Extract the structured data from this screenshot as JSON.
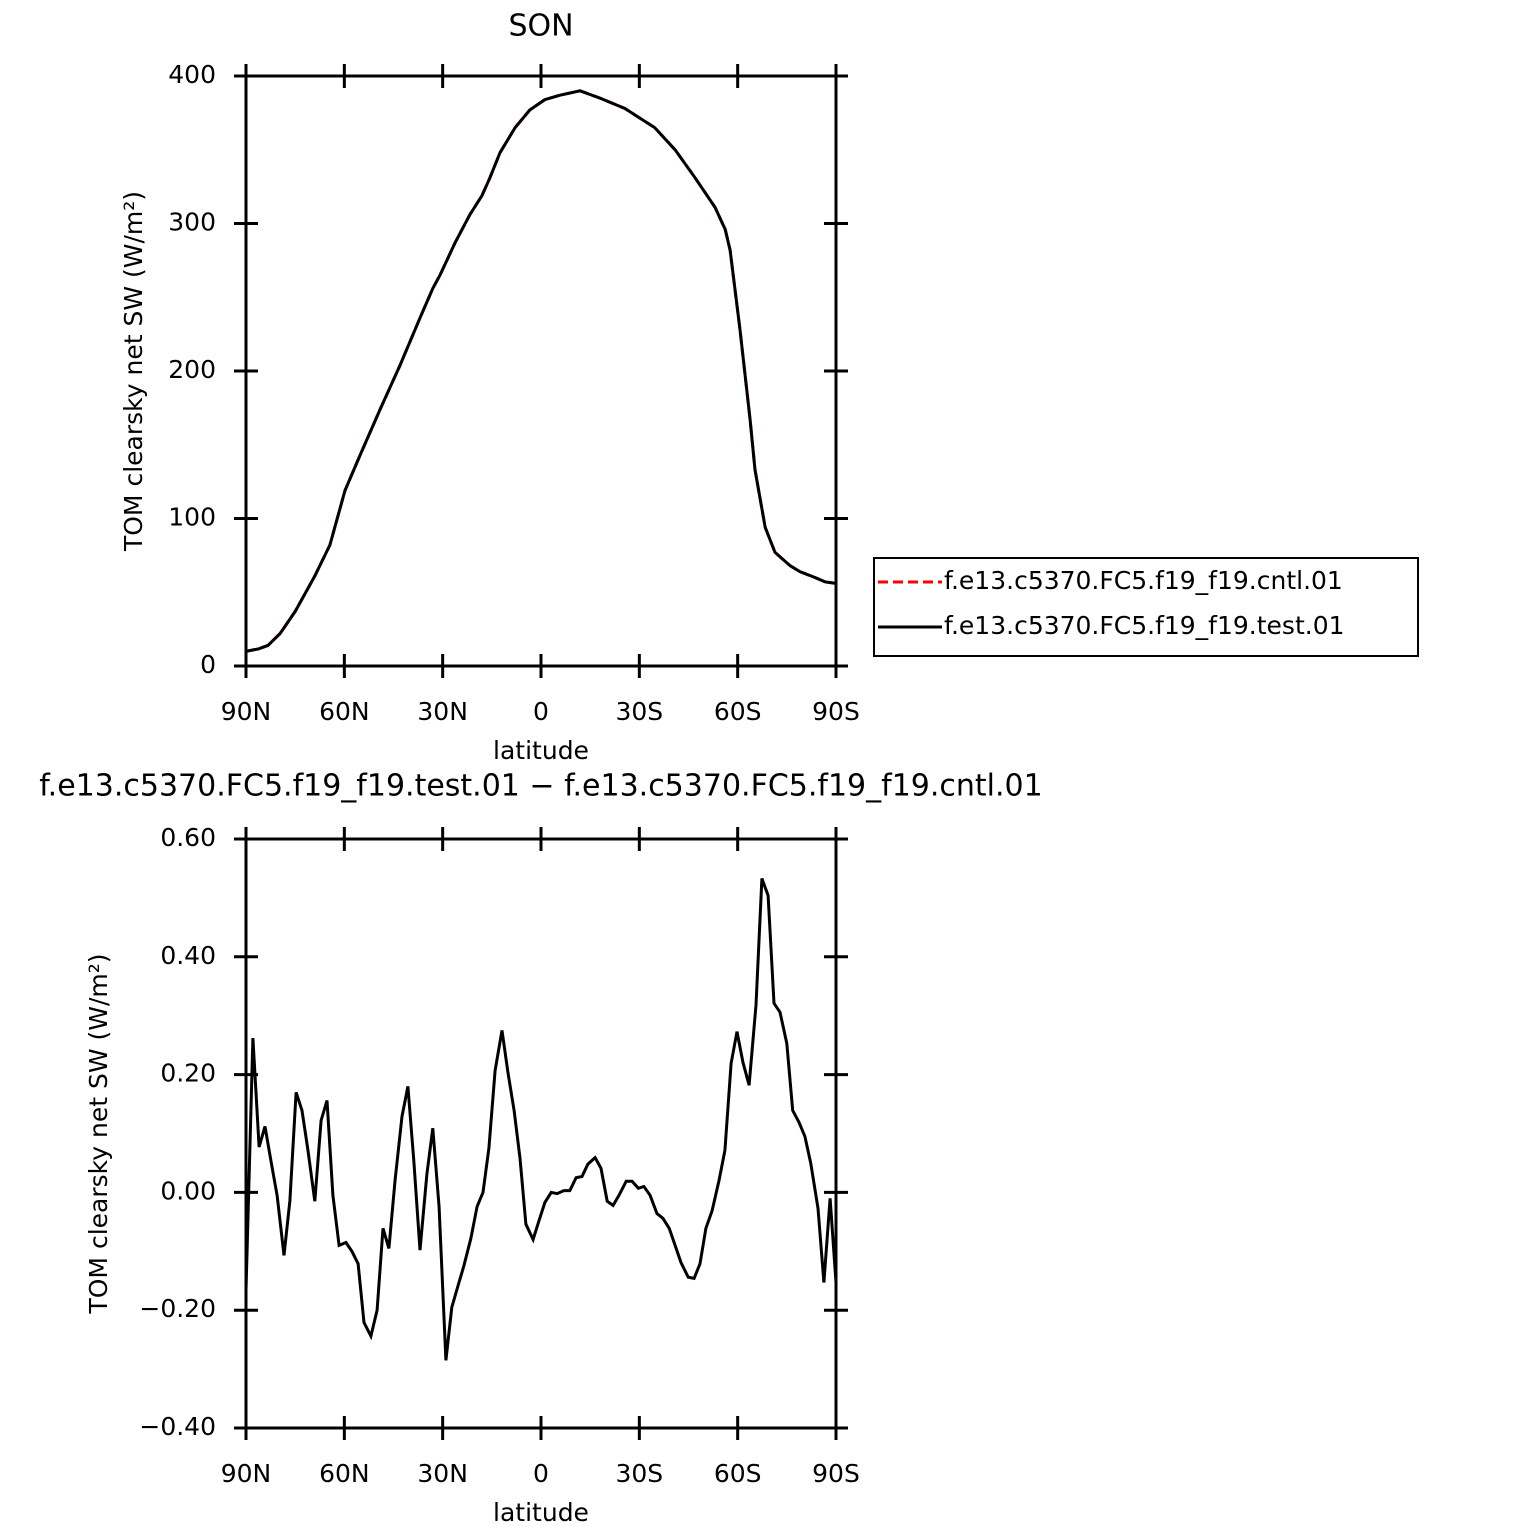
{
  "chart_data": [
    {
      "type": "line",
      "title": "SON",
      "xlabel": "latitude",
      "ylabel": "TOM clearsky net SW (W/m²)",
      "xlim": [
        90,
        -90
      ],
      "xticks": [
        {
          "value": 90,
          "label": "90N"
        },
        {
          "value": 60,
          "label": "60N"
        },
        {
          "value": 30,
          "label": "30N"
        },
        0,
        {
          "value": -30,
          "label": "30S"
        },
        {
          "value": -60,
          "label": "60S"
        },
        {
          "value": -90,
          "label": "90S"
        }
      ],
      "ylim": [
        0,
        400
      ],
      "yticks": [
        0,
        100,
        200,
        300,
        400
      ],
      "legend": "right",
      "x": [
        90,
        86.3,
        83.3,
        79.6,
        75,
        69,
        64.4,
        59.8,
        55.2,
        49.1,
        43,
        36.9,
        33,
        30.8,
        26.2,
        21.7,
        18,
        15.6,
        12.5,
        7.9,
        3.4,
        -1.2,
        -5.8,
        -11.9,
        -18,
        -25.6,
        -34.7,
        -40.9,
        -47,
        -53.1,
        -56.2,
        -57.7,
        -60.7,
        -63.8,
        -65.3,
        -68.4,
        -71.4,
        -76,
        -79,
        -83.6,
        -86.7,
        -90
      ],
      "series": [
        {
          "name": "f.e13.c5370.FC5.f19_f19.cntl.01",
          "color": "#ff0000",
          "linestyle": "dashed",
          "values": [
            10,
            11.5,
            14,
            22,
            37,
            61,
            82,
            119,
            143,
            174,
            204,
            236,
            256,
            265,
            287,
            306,
            319,
            331,
            348,
            365,
            377,
            384,
            387,
            390,
            385,
            378,
            365,
            350,
            331,
            311,
            296,
            282,
            228,
            167,
            133,
            94,
            77,
            68,
            64,
            60,
            57,
            56
          ]
        },
        {
          "name": "f.e13.c5370.FC5.f19_f19.test.01",
          "color": "#000000",
          "linestyle": "solid",
          "values": [
            10,
            11.5,
            14,
            22,
            37,
            61,
            82,
            119,
            143,
            174,
            204,
            236,
            256,
            265,
            287,
            306,
            319,
            331,
            348,
            365,
            377,
            384,
            387,
            390,
            385,
            378,
            365,
            350,
            331,
            311,
            296,
            282,
            228,
            167,
            133,
            94,
            77,
            68,
            64,
            60,
            57,
            56
          ]
        }
      ]
    },
    {
      "type": "line",
      "title": "f.e13.c5370.FC5.f19_f19.test.01 − f.e13.c5370.FC5.f19_f19.cntl.01",
      "xlabel": "latitude",
      "ylabel": "TOM clearsky net SW (W/m²)",
      "xlim": [
        90,
        -90
      ],
      "xticks": [
        {
          "value": 90,
          "label": "90N"
        },
        {
          "value": 60,
          "label": "60N"
        },
        {
          "value": 30,
          "label": "30N"
        },
        0,
        {
          "value": -30,
          "label": "30S"
        },
        {
          "value": -60,
          "label": "60S"
        },
        {
          "value": -90,
          "label": "90S"
        }
      ],
      "ylim": [
        -0.4,
        0.6
      ],
      "yticks": [
        {
          "value": -0.4,
          "label": "−0.40"
        },
        {
          "value": -0.2,
          "label": "−0.20"
        },
        {
          "value": 0,
          "label": "0.00"
        },
        {
          "value": 0.2,
          "label": "0.20"
        },
        {
          "value": 0.4,
          "label": "0.40"
        },
        {
          "value": 0.6,
          "label": "0.60"
        }
      ],
      "x": [
        90,
        87.9,
        86,
        84.2,
        82.4,
        80.5,
        78.4,
        76.6,
        74.7,
        72.9,
        71.1,
        69,
        67.1,
        65.3,
        63.5,
        61.6,
        59.5,
        57.7,
        55.8,
        54,
        51.9,
        50,
        48.2,
        46.4,
        44.5,
        42.4,
        40.6,
        38.8,
        36.9,
        34.8,
        33,
        31.1,
        29,
        27.2,
        25.3,
        23.5,
        21.4,
        19.5,
        17.7,
        15.9,
        14,
        11.9,
        10.1,
        8.2,
        6.4,
        4.6,
        2.4,
        0.6,
        -1.2,
        -3.1,
        -4.9,
        -7,
        -8.8,
        -10.7,
        -12.5,
        -14.3,
        -16.5,
        -18.3,
        -20.2,
        -22,
        -23.8,
        -26,
        -27.8,
        -29.7,
        -31.4,
        -33.3,
        -35.4,
        -37.2,
        -39.1,
        -40.9,
        -42.7,
        -44.9,
        -46.7,
        -48.5,
        -50.3,
        -52.2,
        -54.3,
        -56.1,
        -58,
        -59.8,
        -61.6,
        -63.5,
        -65.6,
        -67.4,
        -69.3,
        -71.1,
        -72.9,
        -75,
        -76.8,
        -78.7,
        -80.5,
        -82.3,
        -84.5,
        -86.3,
        -88.2,
        -90
      ],
      "series": [
        {
          "color": "#000000",
          "linestyle": "solid",
          "values": [
            -0.166,
            0.262,
            0.077,
            0.112,
            0.054,
            -0.005,
            -0.107,
            -0.014,
            0.17,
            0.139,
            0.071,
            -0.015,
            0.122,
            0.156,
            -0.005,
            -0.09,
            -0.085,
            -0.1,
            -0.121,
            -0.221,
            -0.244,
            -0.2,
            -0.061,
            -0.095,
            0.021,
            0.129,
            0.18,
            0.054,
            -0.098,
            0.031,
            0.109,
            -0.025,
            -0.285,
            -0.195,
            -0.158,
            -0.124,
            -0.078,
            -0.024,
            0,
            0.075,
            0.207,
            0.275,
            0.204,
            0.139,
            0.058,
            -0.054,
            -0.08,
            -0.048,
            -0.017,
            0,
            -0.002,
            0.003,
            0.003,
            0.025,
            0.027,
            0.048,
            0.059,
            0.041,
            -0.015,
            -0.022,
            -0.005,
            0.019,
            0.019,
            0.007,
            0.01,
            -0.005,
            -0.036,
            -0.044,
            -0.061,
            -0.09,
            -0.119,
            -0.144,
            -0.146,
            -0.121,
            -0.061,
            -0.031,
            0.02,
            0.071,
            0.219,
            0.273,
            0.221,
            0.182,
            0.318,
            0.533,
            0.504,
            0.321,
            0.306,
            0.253,
            0.139,
            0.119,
            0.095,
            0.049,
            -0.027,
            -0.153,
            -0.01,
            -0.153
          ]
        }
      ]
    }
  ]
}
